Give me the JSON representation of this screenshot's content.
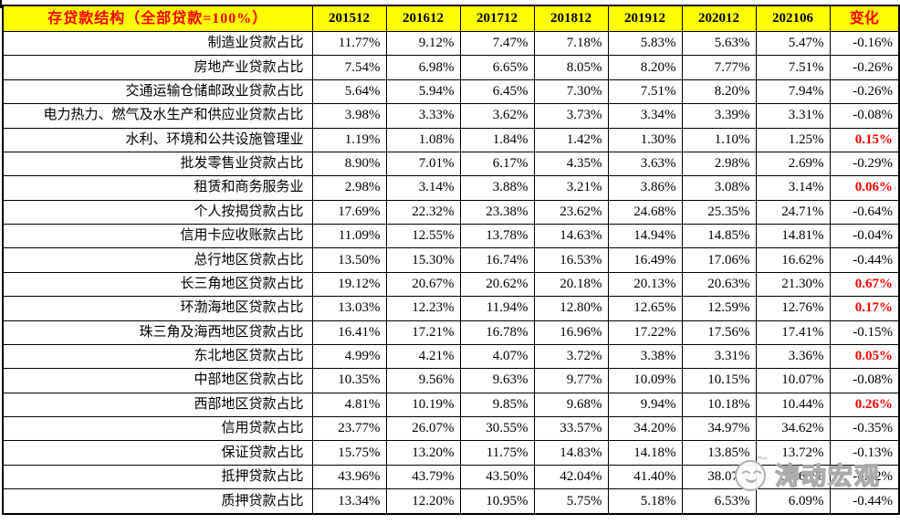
{
  "colors": {
    "header_bg": "#FFFF00",
    "title_color": "#FF0000",
    "change_header_color": "#FF0000",
    "year_header_color": "#000000",
    "positive_change_color": "#FF0000",
    "text_color": "#000000",
    "border_color": "#000000"
  },
  "watermark": {
    "text": "涛动宏观"
  },
  "chart_data": {
    "type": "table",
    "title": "存贷款结构（全部贷款=100%）",
    "columns": [
      "201512",
      "201612",
      "201712",
      "201812",
      "201912",
      "202012",
      "202106"
    ],
    "change_label": "变化",
    "rows": [
      {
        "label": "制造业贷款占比",
        "values": [
          "11.77%",
          "9.12%",
          "7.47%",
          "7.18%",
          "5.83%",
          "5.63%",
          "5.47%"
        ],
        "change": "-0.16%",
        "highlight": false
      },
      {
        "label": "房地产业贷款占比",
        "values": [
          "7.54%",
          "6.98%",
          "6.65%",
          "8.05%",
          "8.20%",
          "7.77%",
          "7.51%"
        ],
        "change": "-0.26%",
        "highlight": false
      },
      {
        "label": "交通运输仓储邮政业贷款占比",
        "values": [
          "5.64%",
          "5.94%",
          "6.45%",
          "7.30%",
          "7.51%",
          "8.20%",
          "7.94%"
        ],
        "change": "-0.26%",
        "highlight": false
      },
      {
        "label": "电力热力、燃气及水生产和供应业贷款占比",
        "values": [
          "3.98%",
          "3.33%",
          "3.62%",
          "3.73%",
          "3.34%",
          "3.39%",
          "3.31%"
        ],
        "change": "-0.08%",
        "highlight": false
      },
      {
        "label": "水利、环境和公共设施管理业",
        "values": [
          "1.19%",
          "1.08%",
          "1.84%",
          "1.42%",
          "1.30%",
          "1.10%",
          "1.25%"
        ],
        "change": "0.15%",
        "highlight": true
      },
      {
        "label": "批发零售业贷款占比",
        "values": [
          "8.90%",
          "7.01%",
          "6.17%",
          "4.35%",
          "3.63%",
          "2.98%",
          "2.69%"
        ],
        "change": "-0.29%",
        "highlight": false
      },
      {
        "label": "租赁和商务服务业",
        "values": [
          "2.98%",
          "3.14%",
          "3.88%",
          "3.21%",
          "3.86%",
          "3.08%",
          "3.14%"
        ],
        "change": "0.06%",
        "highlight": true
      },
      {
        "label": "个人按揭贷款占比",
        "values": [
          "17.69%",
          "22.32%",
          "23.38%",
          "23.62%",
          "24.68%",
          "25.35%",
          "24.71%"
        ],
        "change": "-0.64%",
        "highlight": false
      },
      {
        "label": "信用卡应收账款占比",
        "values": [
          "11.09%",
          "12.55%",
          "13.78%",
          "14.63%",
          "14.94%",
          "14.85%",
          "14.81%"
        ],
        "change": "-0.04%",
        "highlight": false
      },
      {
        "label": "总行地区贷款占比",
        "values": [
          "13.50%",
          "15.30%",
          "16.74%",
          "16.53%",
          "16.49%",
          "17.06%",
          "16.62%"
        ],
        "change": "-0.44%",
        "highlight": false
      },
      {
        "label": "长三角地区贷款占比",
        "values": [
          "19.12%",
          "20.67%",
          "20.62%",
          "20.18%",
          "20.13%",
          "20.63%",
          "21.30%"
        ],
        "change": "0.67%",
        "highlight": true
      },
      {
        "label": "环渤海地区贷款占比",
        "values": [
          "13.03%",
          "12.23%",
          "11.94%",
          "12.80%",
          "12.65%",
          "12.59%",
          "12.76%"
        ],
        "change": "0.17%",
        "highlight": true
      },
      {
        "label": "珠三角及海西地区贷款占比",
        "values": [
          "16.41%",
          "17.21%",
          "16.78%",
          "16.96%",
          "17.22%",
          "17.56%",
          "17.41%"
        ],
        "change": "-0.15%",
        "highlight": false
      },
      {
        "label": "东北地区贷款占比",
        "values": [
          "4.99%",
          "4.21%",
          "4.07%",
          "3.72%",
          "3.38%",
          "3.31%",
          "3.36%"
        ],
        "change": "0.05%",
        "highlight": true
      },
      {
        "label": "中部地区贷款占比",
        "values": [
          "10.35%",
          "9.56%",
          "9.63%",
          "9.77%",
          "10.09%",
          "10.15%",
          "10.07%"
        ],
        "change": "-0.08%",
        "highlight": false
      },
      {
        "label": "西部地区贷款占比",
        "values": [
          "4.81%",
          "10.19%",
          "9.85%",
          "9.68%",
          "9.94%",
          "10.18%",
          "10.44%"
        ],
        "change": "0.26%",
        "highlight": true
      },
      {
        "label": "信用贷款占比",
        "values": [
          "23.77%",
          "26.07%",
          "30.55%",
          "33.57%",
          "34.20%",
          "34.97%",
          "34.62%"
        ],
        "change": "-0.35%",
        "highlight": false
      },
      {
        "label": "保证贷款占比",
        "values": [
          "15.75%",
          "13.20%",
          "11.75%",
          "14.83%",
          "14.18%",
          "13.85%",
          "13.72%"
        ],
        "change": "-0.13%",
        "highlight": false
      },
      {
        "label": "抵押贷款占比",
        "values": [
          "43.96%",
          "43.79%",
          "43.50%",
          "42.04%",
          "41.40%",
          "38.07%",
          "37.65%"
        ],
        "change": "-0.42%",
        "highlight": false
      },
      {
        "label": "质押贷款占比",
        "values": [
          "13.34%",
          "12.20%",
          "10.95%",
          "5.75%",
          "5.18%",
          "6.53%",
          "6.09%"
        ],
        "change": "-0.44%",
        "highlight": false
      }
    ]
  }
}
